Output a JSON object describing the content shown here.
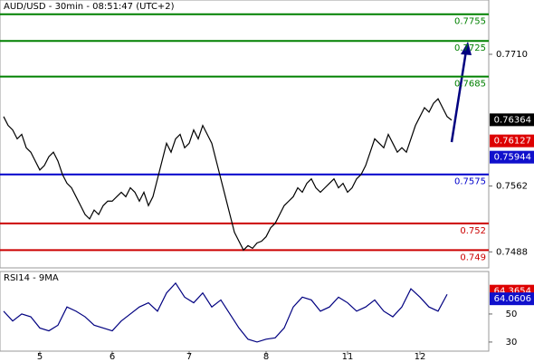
{
  "chart_data": {
    "type": "line",
    "title": "AUD/USD - 30min - 08:51:47 (UTC+2)",
    "categories": [
      null,
      null,
      null,
      null,
      null,
      null,
      null,
      null,
      "5",
      null,
      null,
      null,
      null,
      null,
      null,
      null,
      null,
      null,
      null,
      null,
      null,
      null,
      null,
      null,
      "6",
      null,
      null,
      null,
      null,
      null,
      null,
      null,
      null,
      null,
      null,
      null,
      null,
      null,
      null,
      null,
      null,
      "7",
      null,
      null,
      null,
      null,
      null,
      null,
      null,
      null,
      null,
      null,
      null,
      null,
      null,
      null,
      null,
      null,
      "8",
      null,
      null,
      null,
      null,
      null,
      null,
      null,
      null,
      null,
      null,
      null,
      null,
      null,
      null,
      null,
      null,
      null,
      "11",
      null,
      null,
      null,
      null,
      null,
      null,
      null,
      null,
      null,
      null,
      null,
      null,
      null,
      null,
      null,
      "12",
      null,
      null,
      null,
      null,
      null,
      null,
      null
    ],
    "series": [
      {
        "color": "#000000",
        "values": [
          0.764,
          0.763,
          0.7625,
          0.7615,
          0.762,
          0.7605,
          0.76,
          0.759,
          0.758,
          0.7585,
          0.7595,
          0.76,
          0.759,
          0.7575,
          0.7565,
          0.756,
          0.755,
          0.754,
          0.753,
          0.7525,
          0.7535,
          0.753,
          0.754,
          0.7545,
          0.7545,
          0.755,
          0.7555,
          0.755,
          0.756,
          0.7555,
          0.7545,
          0.7555,
          0.754,
          0.755,
          0.757,
          0.759,
          0.761,
          0.76,
          0.7615,
          0.762,
          0.7605,
          0.761,
          0.7625,
          0.7615,
          0.763,
          0.762,
          0.761,
          0.759,
          0.757,
          0.755,
          0.753,
          0.751,
          0.75,
          0.749,
          0.7495,
          0.7492,
          0.7498,
          0.75,
          0.7505,
          0.7515,
          0.752,
          0.753,
          0.754,
          0.7545,
          0.755,
          0.756,
          0.7555,
          0.7565,
          0.757,
          0.756,
          0.7555,
          0.756,
          0.7565,
          0.757,
          0.756,
          0.7565,
          0.7555,
          0.756,
          0.757,
          0.7575,
          0.7585,
          0.76,
          0.7615,
          0.761,
          0.7605,
          0.762,
          0.761,
          0.76,
          0.7605,
          0.76,
          0.7615,
          0.763,
          0.764,
          0.765,
          0.7645,
          0.7655,
          0.766,
          0.765,
          0.764,
          0.7636
        ]
      }
    ],
    "ylim": [
      0.747,
      0.7771
    ],
    "yticks": [
      {
        "value": 0.771,
        "label": "0.7710"
      },
      0.7562,
      0.7488
    ],
    "levels": [
      {
        "value": 0.7755,
        "color": "#008000"
      },
      {
        "value": 0.7725,
        "color": "#008000"
      },
      {
        "value": 0.7685,
        "color": "#008000"
      },
      {
        "value": 0.7575,
        "color": "#0000cc"
      },
      {
        "value": 0.752,
        "color": "#cc0000"
      },
      {
        "value": 0.749,
        "color": "#cc0000"
      }
    ],
    "badges": [
      {
        "value": 0.76364,
        "color": "#000000"
      },
      {
        "value": 0.76127,
        "color": "#dd0000"
      },
      {
        "value": 0.75944,
        "color": "#1010cc"
      }
    ],
    "rsi": {
      "title": "RSI14 - 9MA",
      "color": "#000080",
      "values": [
        52,
        45,
        50,
        48,
        40,
        38,
        42,
        55,
        52,
        48,
        42,
        40,
        38,
        45,
        50,
        55,
        58,
        52,
        65,
        72,
        62,
        58,
        65,
        55,
        60,
        50,
        40,
        32,
        30,
        32,
        33,
        40,
        55,
        62,
        60,
        52,
        55,
        62,
        58,
        52,
        55,
        60,
        52,
        48,
        55,
        68,
        62,
        55,
        52,
        64
      ],
      "ylim": [
        23.5,
        80.3
      ],
      "yticks": [
        50,
        30
      ],
      "badges": [
        {
          "value": 64.3654,
          "color": "#dd0000"
        },
        {
          "value": 64.0606,
          "color": "#1010cc"
        }
      ]
    }
  }
}
